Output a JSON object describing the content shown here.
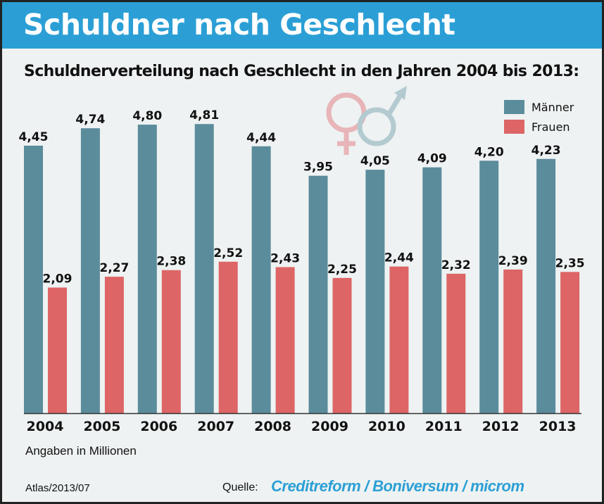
{
  "header": {
    "title": "Schuldner nach Geschlecht"
  },
  "chart_data": {
    "type": "bar",
    "title": "Schuldnerverteilung nach Geschlecht in den Jahren 2004 bis 2013:",
    "categories": [
      "2004",
      "2005",
      "2006",
      "2007",
      "2008",
      "2009",
      "2010",
      "2011",
      "2012",
      "2013"
    ],
    "series": [
      {
        "name": "Männer",
        "color": "#5b8c9c",
        "values": [
          4.45,
          4.74,
          4.8,
          4.81,
          4.44,
          3.95,
          4.05,
          4.09,
          4.2,
          4.23
        ],
        "labels": [
          "4,45",
          "4,74",
          "4,80",
          "4,81",
          "4,44",
          "3,95",
          "4,05",
          "4,09",
          "4,20",
          "4,23"
        ]
      },
      {
        "name": "Frauen",
        "color": "#dd6566",
        "values": [
          2.09,
          2.27,
          2.38,
          2.52,
          2.43,
          2.25,
          2.44,
          2.32,
          2.39,
          2.35
        ],
        "labels": [
          "2,09",
          "2,27",
          "2,38",
          "2,52",
          "2,43",
          "2,25",
          "2,44",
          "2,32",
          "2,39",
          "2,35"
        ]
      }
    ],
    "ylim": [
      0,
      5
    ],
    "grid": false,
    "legend": "top-right",
    "unit_note": "Angaben in Millionen"
  },
  "footer": {
    "atlas": "Atlas/2013/07",
    "quelle_label": "Quelle:",
    "source": "Creditreform / Boniversum / microm"
  }
}
